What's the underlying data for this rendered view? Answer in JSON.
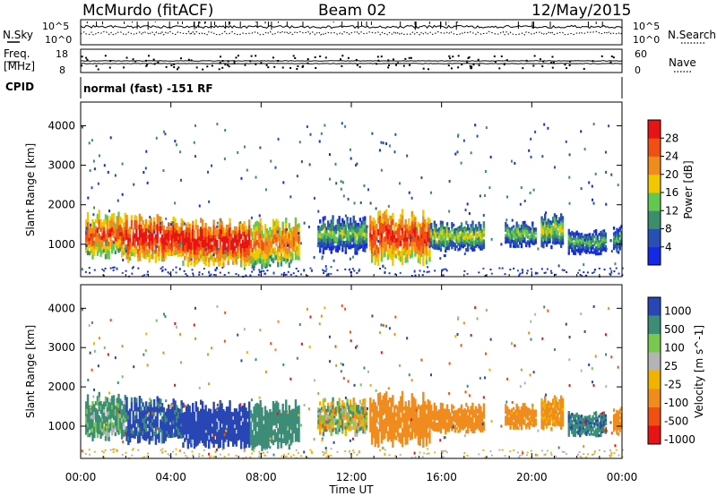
{
  "header": {
    "station": "McMurdo (fitACF)",
    "beam": "Beam 02",
    "date": "12/May/2015"
  },
  "status_panel": {
    "nsky_label": "N.Sky",
    "nsearch_label": "N.Search",
    "freq_label_1": "Freq.",
    "freq_label_2": "[MHz]",
    "nave_label": "Nave",
    "cpid_label": "CPID",
    "cpid_value": "normal (fast) -151 RF",
    "noise_ticks_left": [
      "10^5",
      "10^0"
    ],
    "noise_ticks_right": [
      "10^5",
      "10^0"
    ],
    "freq_ticks": [
      "18",
      "8"
    ],
    "nave_ticks": [
      "60",
      "0"
    ]
  },
  "chart_data": [
    {
      "type": "heatmap",
      "panel": "power",
      "xlabel": "Time UT",
      "ylabel": "Slant Range [km]",
      "colorbar_label": "Power [dB]",
      "x_ticks": [
        "00:00",
        "04:00",
        "08:00",
        "12:00",
        "16:00",
        "20:00",
        "00:00"
      ],
      "x_range_hours": [
        0,
        24
      ],
      "ylim": [
        180,
        4600
      ],
      "y_ticks": [
        "1000",
        "2000",
        "3000",
        "4000"
      ],
      "colorbar_ticks": [
        "4",
        "8",
        "12",
        "16",
        "20",
        "24",
        "28"
      ],
      "colorbar_range": [
        0,
        32
      ],
      "colors": [
        "#1428e6",
        "#2850b4",
        "#3c8c6e",
        "#64c850",
        "#f0c800",
        "#f08c1e",
        "#f05014",
        "#e61414"
      ],
      "echo_bands": [
        {
          "t": [
            0.2,
            2.0
          ],
          "range_km": [
            700,
            1700
          ],
          "mean_db": 22
        },
        {
          "t": [
            2.0,
            4.5
          ],
          "range_km": [
            600,
            1600
          ],
          "mean_db": 26
        },
        {
          "t": [
            4.5,
            7.5
          ],
          "range_km": [
            500,
            1500
          ],
          "mean_db": 26
        },
        {
          "t": [
            7.5,
            9.7
          ],
          "range_km": [
            450,
            1500
          ],
          "mean_db": 20
        },
        {
          "t": [
            10.5,
            12.7
          ],
          "range_km": [
            800,
            1600
          ],
          "mean_db": 10
        },
        {
          "t": [
            12.8,
            15.5
          ],
          "range_km": [
            550,
            1700
          ],
          "mean_db": 24
        },
        {
          "t": [
            15.5,
            17.9
          ],
          "range_km": [
            850,
            1500
          ],
          "mean_db": 12
        },
        {
          "t": [
            18.8,
            20.2
          ],
          "range_km": [
            950,
            1500
          ],
          "mean_db": 10
        },
        {
          "t": [
            20.4,
            21.4
          ],
          "range_km": [
            900,
            1700
          ],
          "mean_db": 12
        },
        {
          "t": [
            21.6,
            23.3
          ],
          "range_km": [
            750,
            1300
          ],
          "mean_db": 8
        },
        {
          "t": [
            23.6,
            24.0
          ],
          "range_km": [
            800,
            1400
          ],
          "mean_db": 8
        }
      ]
    },
    {
      "type": "heatmap",
      "panel": "velocity",
      "xlabel": "Time UT",
      "ylabel": "Slant Range [km]",
      "colorbar_label": "Velocity [m s^-1]",
      "x_ticks": [
        "00:00",
        "04:00",
        "08:00",
        "12:00",
        "16:00",
        "20:00",
        "00:00"
      ],
      "x_range_hours": [
        0,
        24
      ],
      "ylim": [
        180,
        4600
      ],
      "y_ticks": [
        "1000",
        "2000",
        "3000",
        "4000"
      ],
      "colorbar_ticks": [
        "1000",
        "500",
        "100",
        "25",
        "-25",
        "-100",
        "-500",
        "-1000"
      ],
      "colorbar_range": [
        -1000,
        1000
      ],
      "colors": [
        "#2846b4",
        "#3c8c78",
        "#78c850",
        "#b4b4b4",
        "#f0b400",
        "#f08c1e",
        "#f05014",
        "#e61414"
      ],
      "echo_bands": [
        {
          "t": [
            0.2,
            2.0
          ],
          "range_km": [
            700,
            1700
          ],
          "mean_vel": 150
        },
        {
          "t": [
            2.0,
            4.5
          ],
          "range_km": [
            600,
            1600
          ],
          "mean_vel": 600
        },
        {
          "t": [
            4.5,
            7.5
          ],
          "range_km": [
            500,
            1500
          ],
          "mean_vel": 700
        },
        {
          "t": [
            7.5,
            9.7
          ],
          "range_km": [
            450,
            1500
          ],
          "mean_vel": 300
        },
        {
          "t": [
            10.5,
            12.7
          ],
          "range_km": [
            800,
            1600
          ],
          "mean_vel": 20
        },
        {
          "t": [
            12.8,
            15.5
          ],
          "range_km": [
            550,
            1700
          ],
          "mean_vel": -300
        },
        {
          "t": [
            15.5,
            17.9
          ],
          "range_km": [
            850,
            1500
          ],
          "mean_vel": -300
        },
        {
          "t": [
            18.8,
            20.2
          ],
          "range_km": [
            950,
            1500
          ],
          "mean_vel": -250
        },
        {
          "t": [
            20.4,
            21.4
          ],
          "range_km": [
            900,
            1700
          ],
          "mean_vel": -200
        },
        {
          "t": [
            21.6,
            23.3
          ],
          "range_km": [
            750,
            1300
          ],
          "mean_vel": 400
        },
        {
          "t": [
            23.6,
            24.0
          ],
          "range_km": [
            800,
            1400
          ],
          "mean_vel": -300
        }
      ]
    }
  ]
}
